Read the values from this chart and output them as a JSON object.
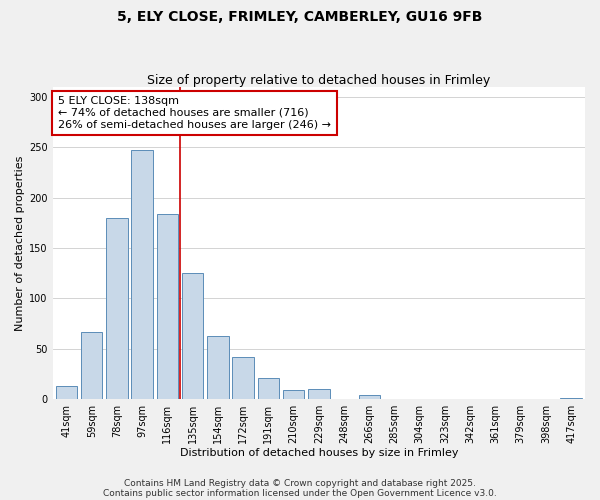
{
  "title": "5, ELY CLOSE, FRIMLEY, CAMBERLEY, GU16 9FB",
  "subtitle": "Size of property relative to detached houses in Frimley",
  "xlabel": "Distribution of detached houses by size in Frimley",
  "ylabel": "Number of detached properties",
  "bar_labels": [
    "41sqm",
    "59sqm",
    "78sqm",
    "97sqm",
    "116sqm",
    "135sqm",
    "154sqm",
    "172sqm",
    "191sqm",
    "210sqm",
    "229sqm",
    "248sqm",
    "266sqm",
    "285sqm",
    "304sqm",
    "323sqm",
    "342sqm",
    "361sqm",
    "379sqm",
    "398sqm",
    "417sqm"
  ],
  "bar_values": [
    13,
    67,
    180,
    247,
    184,
    125,
    63,
    42,
    21,
    9,
    10,
    0,
    4,
    0,
    0,
    0,
    0,
    0,
    0,
    0,
    1
  ],
  "bar_color": "#c8d8e8",
  "bar_edge_color": "#5b8db8",
  "ylim": [
    0,
    310
  ],
  "yticks": [
    0,
    50,
    100,
    150,
    200,
    250,
    300
  ],
  "vline_pos": 4.5,
  "vline_color": "#cc0000",
  "annotation_title": "5 ELY CLOSE: 138sqm",
  "annotation_line1": "← 74% of detached houses are smaller (716)",
  "annotation_line2": "26% of semi-detached houses are larger (246) →",
  "annotation_box_color": "#ffffff",
  "annotation_box_edge_color": "#cc0000",
  "footnote1": "Contains HM Land Registry data © Crown copyright and database right 2025.",
  "footnote2": "Contains public sector information licensed under the Open Government Licence v3.0.",
  "bg_color": "#f0f0f0",
  "plot_bg_color": "#ffffff",
  "grid_color": "#cccccc",
  "title_fontsize": 10,
  "subtitle_fontsize": 9,
  "axis_label_fontsize": 8,
  "tick_fontsize": 7,
  "annotation_fontsize": 8,
  "footnote_fontsize": 6.5
}
